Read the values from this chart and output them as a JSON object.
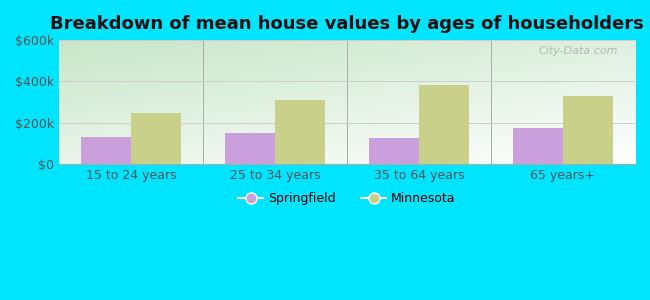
{
  "title": "Breakdown of mean house values by ages of householders",
  "categories": [
    "15 to 24 years",
    "25 to 34 years",
    "35 to 64 years",
    "65 years+"
  ],
  "springfield_values": [
    130000,
    150000,
    125000,
    175000
  ],
  "minnesota_values": [
    250000,
    310000,
    385000,
    330000
  ],
  "springfield_color": "#c9a0dc",
  "minnesota_color": "#c8d08a",
  "background_outer": "#00e5ff",
  "plot_bg_bottom_left": "#c8e6c9",
  "plot_bg_top_right": "#ffffff",
  "ylim": [
    0,
    600000
  ],
  "yticks": [
    0,
    200000,
    400000,
    600000
  ],
  "ytick_labels": [
    "$0",
    "$200k",
    "$400k",
    "$600k"
  ],
  "legend_springfield": "Springfield",
  "legend_minnesota": "Minnesota",
  "watermark": "City-Data.com",
  "bar_width": 0.35,
  "title_fontsize": 13
}
